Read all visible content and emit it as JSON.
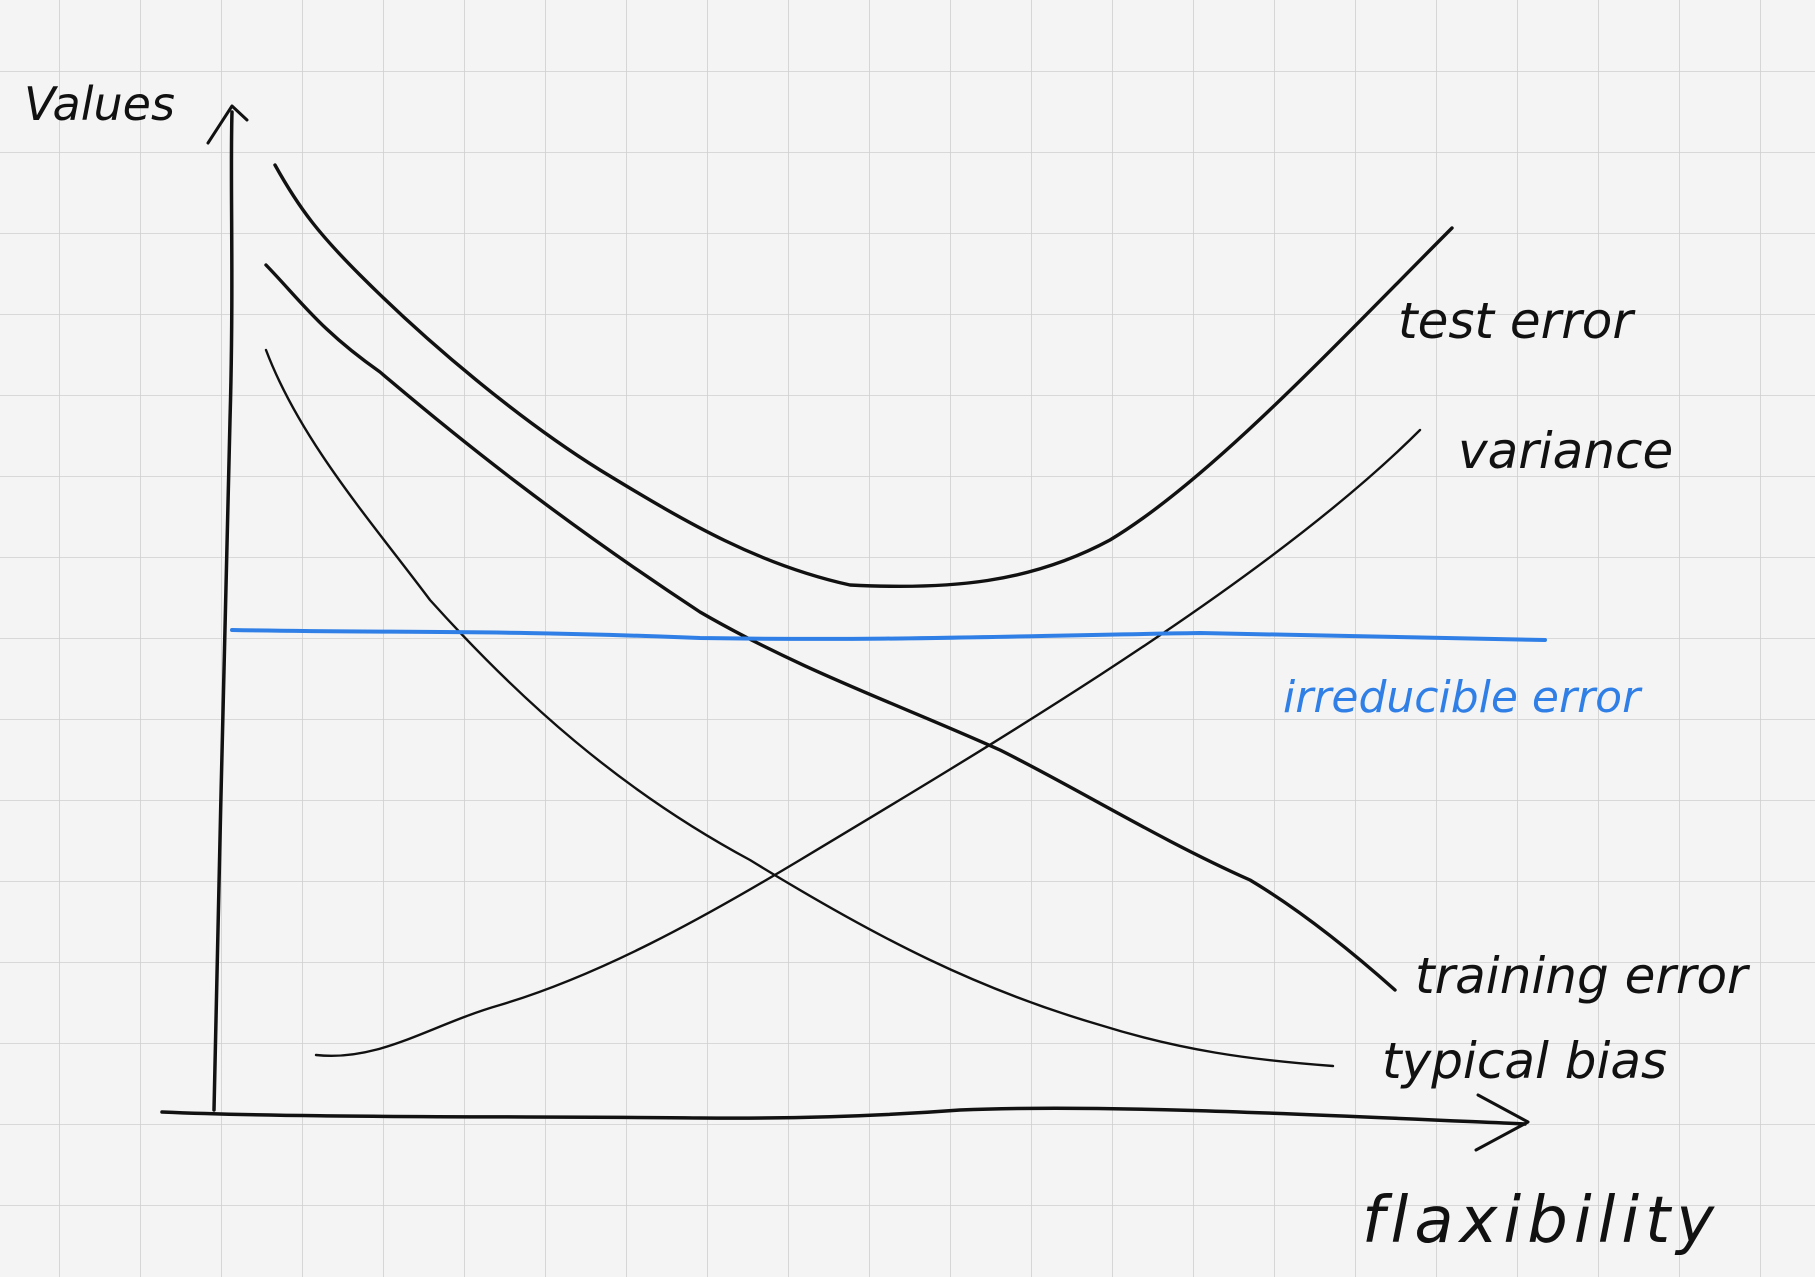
{
  "diagram": {
    "y_axis_label": "Values",
    "x_axis_label": "flaxibility",
    "curves": [
      {
        "id": "test-error",
        "label": "test error",
        "color": "#111111"
      },
      {
        "id": "variance",
        "label": "variance",
        "color": "#111111"
      },
      {
        "id": "irreducible-error",
        "label": "irreducible error",
        "color": "#2f7fe6"
      },
      {
        "id": "training-error",
        "label": "training error",
        "color": "#111111"
      },
      {
        "id": "typical-bias",
        "label": "typical bias",
        "color": "#111111"
      }
    ],
    "colors": {
      "paper": "#f4f4f4",
      "grid": "#cfcfcf",
      "ink": "#111111",
      "accent": "#2f7fe6"
    }
  }
}
